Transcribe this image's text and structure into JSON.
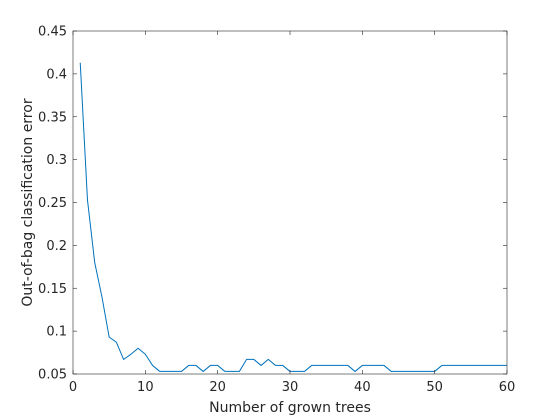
{
  "chart_data": {
    "type": "line",
    "title": "",
    "xlabel": "Number of grown trees",
    "ylabel": "Out-of-bag classification error",
    "xlim": [
      0,
      60
    ],
    "ylim": [
      0.05,
      0.45
    ],
    "xticks": [
      0,
      10,
      20,
      30,
      40,
      50,
      60
    ],
    "yticks": [
      0.05,
      0.1,
      0.15,
      0.2,
      0.25,
      0.3,
      0.35,
      0.4,
      0.45
    ],
    "xtick_labels": [
      "0",
      "10",
      "20",
      "30",
      "40",
      "50",
      "60"
    ],
    "ytick_labels": [
      "0.05",
      "0.1",
      "0.15",
      "0.2",
      "0.25",
      "0.3",
      "0.35",
      "0.4",
      "0.45"
    ],
    "grid": false,
    "line_color": "#0072BD",
    "series": [
      {
        "x": [
          1,
          2,
          3,
          4,
          5,
          6,
          7,
          8,
          9,
          10,
          11,
          12,
          13,
          14,
          15,
          16,
          17,
          18,
          19,
          20,
          21,
          22,
          23,
          24,
          25,
          26,
          27,
          28,
          29,
          30,
          31,
          32,
          33,
          34,
          35,
          36,
          37,
          38,
          39,
          40,
          41,
          42,
          43,
          44,
          45,
          46,
          47,
          48,
          49,
          50,
          51,
          52,
          53,
          54,
          55,
          56,
          57,
          58,
          59,
          60
        ],
        "values": [
          0.413,
          0.253,
          0.18,
          0.14,
          0.093,
          0.087,
          0.067,
          0.073,
          0.08,
          0.073,
          0.06,
          0.053,
          0.053,
          0.053,
          0.053,
          0.06,
          0.06,
          0.053,
          0.06,
          0.06,
          0.053,
          0.053,
          0.053,
          0.067,
          0.067,
          0.06,
          0.067,
          0.06,
          0.06,
          0.053,
          0.053,
          0.053,
          0.06,
          0.06,
          0.06,
          0.06,
          0.06,
          0.06,
          0.053,
          0.06,
          0.06,
          0.06,
          0.06,
          0.053,
          0.053,
          0.053,
          0.053,
          0.053,
          0.053,
          0.053,
          0.06,
          0.06,
          0.06,
          0.06,
          0.06,
          0.06,
          0.06,
          0.06,
          0.06,
          0.06
        ]
      }
    ]
  }
}
